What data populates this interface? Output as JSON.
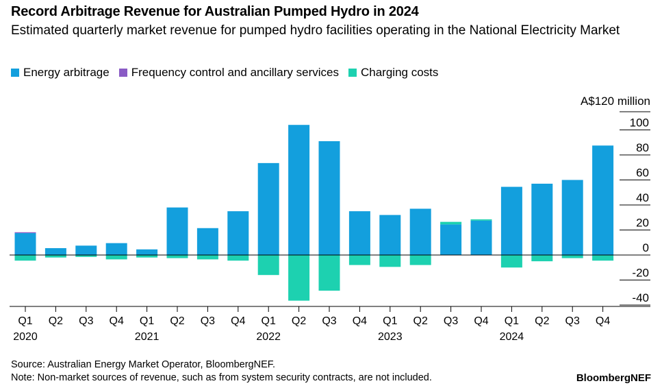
{
  "chart_data": {
    "type": "bar",
    "stacked": true,
    "title": "Record Arbitrage Revenue for Australian Pumped Hydro in 2024",
    "subtitle": "Estimated quarterly market revenue for pumped hydro facilities operating in the National Electricity Market",
    "unit_label": "A$120 million",
    "ylim": [
      -40,
      120
    ],
    "yticks": [
      100,
      80,
      60,
      40,
      20,
      0,
      -20,
      -40
    ],
    "ytick_labels": [
      "100",
      "80",
      "60",
      "40",
      "20",
      "0",
      "-20",
      "-40"
    ],
    "grid": true,
    "categories": [
      "Q1",
      "Q2",
      "Q3",
      "Q4",
      "Q1",
      "Q2",
      "Q3",
      "Q4",
      "Q1",
      "Q2",
      "Q3",
      "Q4",
      "Q1",
      "Q2",
      "Q3",
      "Q4",
      "Q1",
      "Q2",
      "Q3",
      "Q4"
    ],
    "years": [
      {
        "label": "2020",
        "index": 0
      },
      {
        "label": "2021",
        "index": 4
      },
      {
        "label": "2022",
        "index": 8
      },
      {
        "label": "2023",
        "index": 12
      },
      {
        "label": "2024",
        "index": 16
      }
    ],
    "series": [
      {
        "name": "Energy arbitrage",
        "color": "#139fdd",
        "values": [
          17.5,
          5.5,
          7.5,
          9.5,
          4.5,
          38,
          21.5,
          35,
          73.5,
          104,
          91,
          35,
          32,
          37,
          24.5,
          27.5,
          54.5,
          57,
          60,
          87.5
        ]
      },
      {
        "name": "Frequency control and ancillary services",
        "color": "#8a5bc5",
        "values": [
          0.7,
          0,
          0,
          0,
          0,
          0,
          0,
          0,
          0,
          0,
          0,
          0,
          0,
          0,
          0,
          0,
          0,
          0,
          0,
          0
        ]
      },
      {
        "name": "Charging costs",
        "color": "#1dd1b0",
        "values": [
          -4.5,
          -2,
          -1.5,
          -3.5,
          -2,
          -2.5,
          -3.5,
          -4.5,
          -16,
          -36.5,
          -28.5,
          -8,
          -9.5,
          -8,
          2,
          1,
          -10,
          -5,
          -2.5,
          -4.5
        ]
      }
    ]
  },
  "footer": {
    "source": "Source: Australian Energy Market Operator, BloombergNEF.",
    "note": "Note: Non-market sources of revenue, such as from system security contracts, are not included.",
    "brand": "BloombergNEF"
  }
}
